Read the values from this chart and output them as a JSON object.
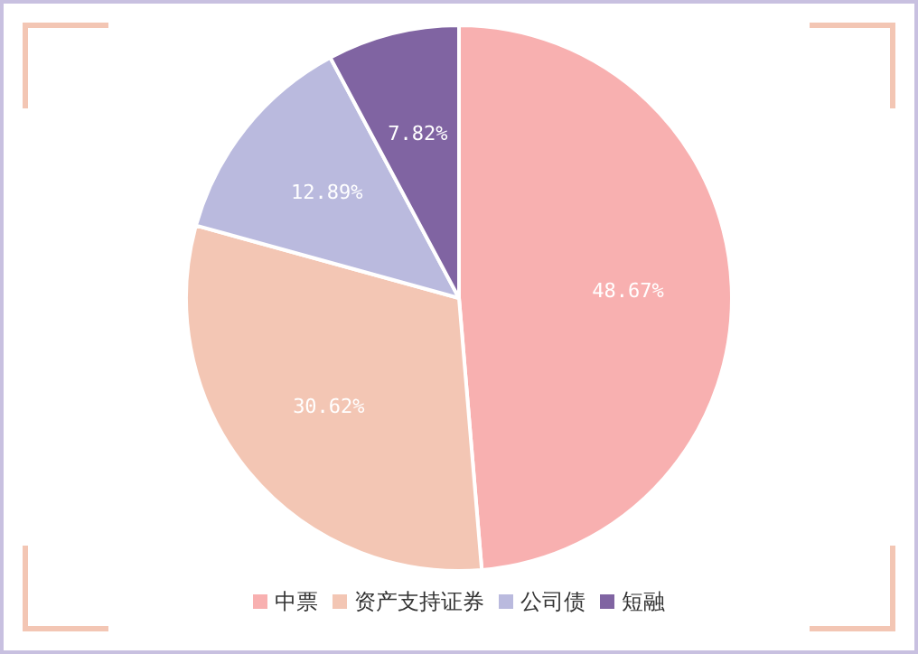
{
  "chart_data": {
    "type": "pie",
    "categories": [
      "中票",
      "资产支持证券",
      "公司债",
      "短融"
    ],
    "values": [
      48.67,
      30.62,
      12.89,
      7.82
    ],
    "colors": [
      "#f8b0b0",
      "#f3c6b4",
      "#babade",
      "#8064a2"
    ],
    "value_labels": [
      "48.67%",
      "30.62%",
      "12.89%",
      "7.82%"
    ],
    "legend": "bottom"
  }
}
